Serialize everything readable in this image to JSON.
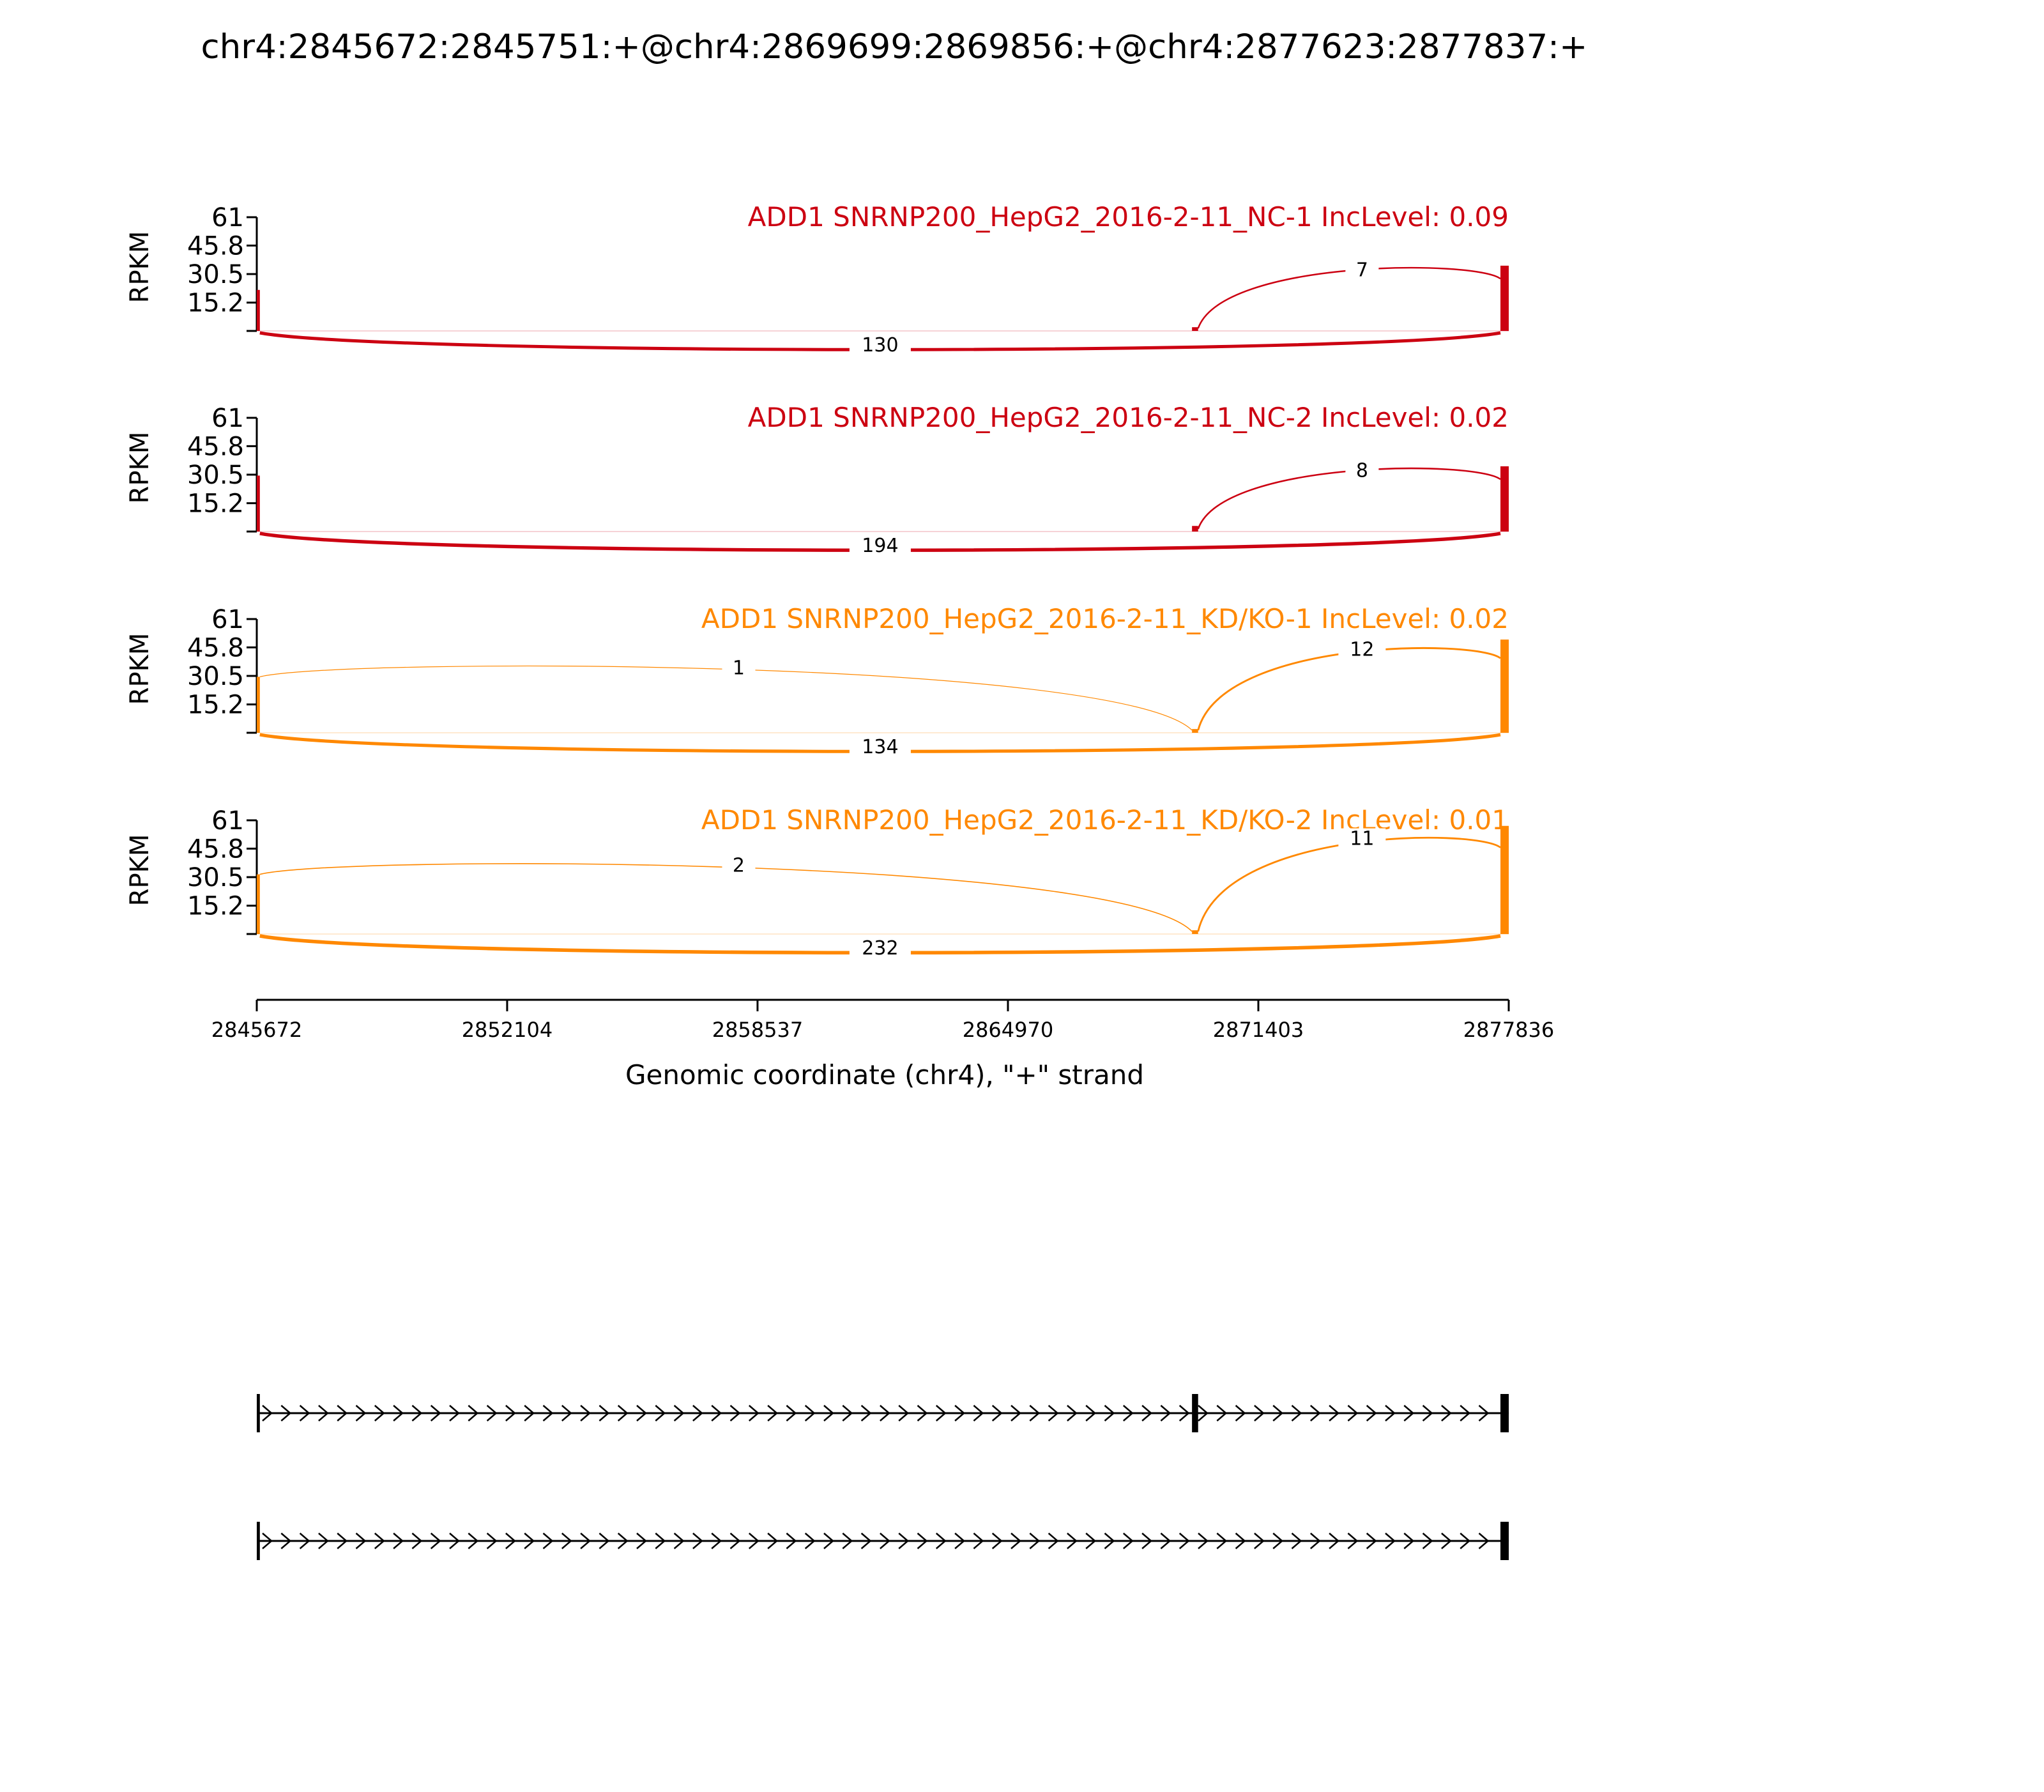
{
  "title": "chr4:2845672:2845751:+@chr4:2869699:2869856:+@chr4:2877623:2877837:+",
  "colors": {
    "nc": "#cc0011",
    "kd": "#ff8800",
    "axis": "#000000",
    "gene": "#000000"
  },
  "chart_data": {
    "type": "area",
    "title": "chr4:2845672:2845751:+@chr4:2869699:2869856:+@chr4:2877623:2877837:+",
    "xlabel": "Genomic coordinate (chr4), \"+\" strand",
    "ylabel": "RPKM",
    "xlim": [
      2845672,
      2877836
    ],
    "x_ticks": [
      "2845672",
      "2852104",
      "2858537",
      "2864970",
      "2871403",
      "2877836"
    ],
    "ylim": [
      0,
      61
    ],
    "y_ticks": [
      "61",
      "45.8",
      "30.5",
      "15.2"
    ],
    "exons": [
      [
        2845672,
        2845751
      ],
      [
        2869699,
        2869856
      ],
      [
        2877623,
        2877837
      ]
    ],
    "tracks": [
      {
        "label": "ADD1 SNRNP200_HepG2_2016-2-11_NC-1 IncLevel: 0.09",
        "group": "nc",
        "exon_peaks": [
          22,
          2,
          35
        ],
        "junctions": [
          {
            "from": 2869856,
            "to": 2877623,
            "count": "7",
            "side": "above"
          },
          {
            "from": 2845751,
            "to": 2877623,
            "count": "130",
            "side": "below"
          }
        ]
      },
      {
        "label": "ADD1 SNRNP200_HepG2_2016-2-11_NC-2 IncLevel: 0.02",
        "group": "nc",
        "exon_peaks": [
          30,
          3,
          35
        ],
        "junctions": [
          {
            "from": 2869856,
            "to": 2877623,
            "count": "8",
            "side": "above"
          },
          {
            "from": 2845751,
            "to": 2877623,
            "count": "194",
            "side": "below"
          }
        ]
      },
      {
        "label": "ADD1 SNRNP200_HepG2_2016-2-11_KD/KO-1 IncLevel: 0.02",
        "group": "kd",
        "exon_peaks": [
          30,
          2,
          50
        ],
        "junctions": [
          {
            "from": 2845751,
            "to": 2869699,
            "count": "1",
            "side": "above"
          },
          {
            "from": 2869856,
            "to": 2877623,
            "count": "12",
            "side": "above"
          },
          {
            "from": 2845751,
            "to": 2877623,
            "count": "134",
            "side": "below"
          }
        ]
      },
      {
        "label": "ADD1 SNRNP200_HepG2_2016-2-11_KD/KO-2 IncLevel: 0.01",
        "group": "kd",
        "exon_peaks": [
          32,
          2,
          58
        ],
        "junctions": [
          {
            "from": 2845751,
            "to": 2869699,
            "count": "2",
            "side": "above"
          },
          {
            "from": 2869856,
            "to": 2877623,
            "count": "11",
            "side": "above"
          },
          {
            "from": 2845751,
            "to": 2877623,
            "count": "232",
            "side": "below"
          }
        ]
      }
    ],
    "isoforms": [
      {
        "exons": [
          [
            2845672,
            2845751
          ],
          [
            2869699,
            2869856
          ],
          [
            2877623,
            2877837
          ]
        ]
      },
      {
        "exons": [
          [
            2845672,
            2845751
          ],
          [
            2877623,
            2877837
          ]
        ]
      }
    ]
  }
}
